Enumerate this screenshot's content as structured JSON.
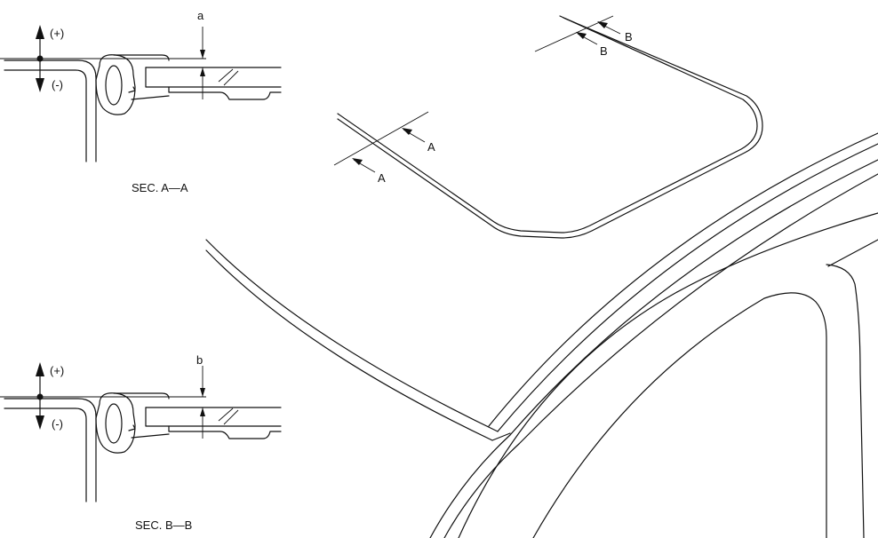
{
  "section_a": {
    "title": "SEC. A—A",
    "plus_label": "(+)",
    "minus_label": "(-)",
    "dimension_label": "a"
  },
  "section_b": {
    "title": "SEC. B—B",
    "plus_label": "(+)",
    "minus_label": "(-)",
    "dimension_label": "b"
  },
  "cut_markers": {
    "a_upper": "A",
    "a_lower": "A",
    "b_upper": "B",
    "b_lower": "B"
  }
}
